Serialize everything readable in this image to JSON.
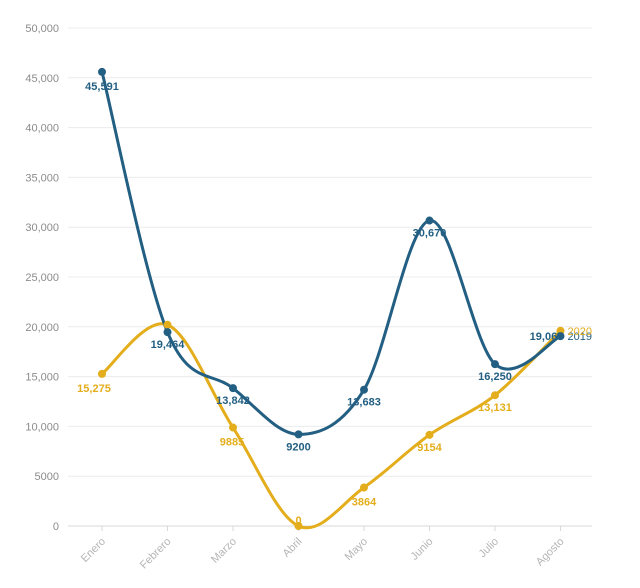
{
  "chart_data": {
    "type": "line",
    "categories": [
      "Enero",
      "Febrero",
      "Marzo",
      "Abril",
      "Mayo",
      "Junio",
      "Julio",
      "Agosto"
    ],
    "ylim": [
      0,
      50000
    ],
    "yticks": [
      {
        "value": 0,
        "label": "0"
      },
      {
        "value": 5000,
        "label": "5000"
      },
      {
        "value": 10000,
        "label": "10,000"
      },
      {
        "value": 15000,
        "label": "15,000"
      },
      {
        "value": 20000,
        "label": "20,000"
      },
      {
        "value": 25000,
        "label": "25,000"
      },
      {
        "value": 30000,
        "label": "30,000"
      },
      {
        "value": 35000,
        "label": "35,000"
      },
      {
        "value": 40000,
        "label": "40,000"
      },
      {
        "value": 45000,
        "label": "45,000"
      },
      {
        "value": 50000,
        "label": "50,000"
      }
    ],
    "series": [
      {
        "name": "2019",
        "color": "#235f82",
        "values": [
          45591,
          19464,
          13842,
          9200,
          13683,
          30670,
          16250,
          19065
        ],
        "labels": [
          "45,591",
          "19,464",
          "13,842",
          "9200",
          "13,683",
          "30,670",
          "16,250",
          "19,065"
        ]
      },
      {
        "name": "2020",
        "color": "#e3ad1b",
        "values": [
          15275,
          20200,
          9885,
          0,
          3864,
          9154,
          13131,
          19600
        ],
        "labels": [
          "15,275",
          "",
          "9885",
          "0",
          "3864",
          "9154",
          "13,131",
          ""
        ]
      }
    ],
    "legend_position": "right-end"
  }
}
